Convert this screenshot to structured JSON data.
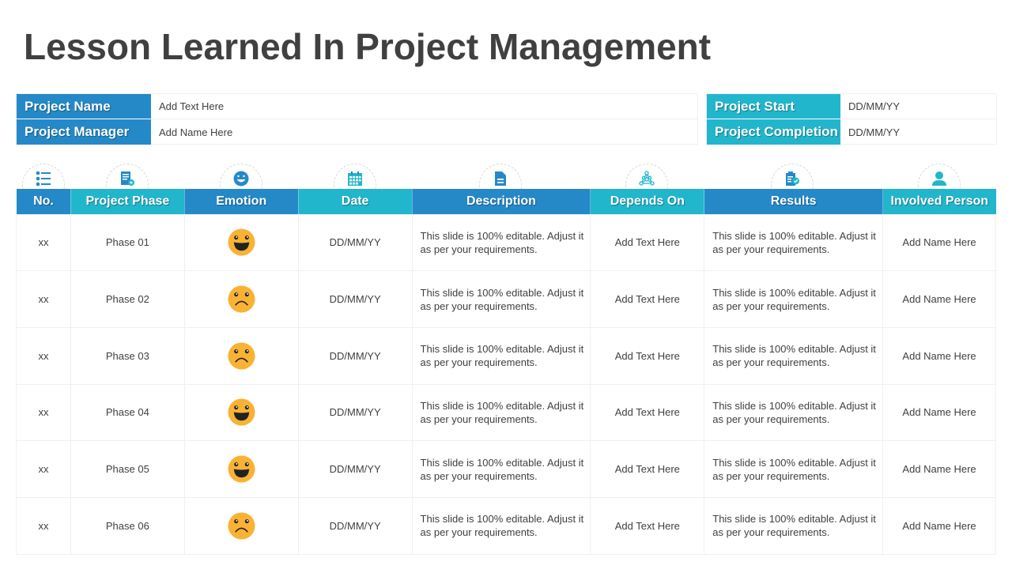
{
  "title": "Lesson Learned In Project Management",
  "info_left": [
    {
      "label": "Project Name",
      "value": "Add Text Here"
    },
    {
      "label": "Project Manager",
      "value": "Add Name Here"
    }
  ],
  "info_right": [
    {
      "label": "Project Start",
      "value": "DD/MM/YY"
    },
    {
      "label": "Project Completion",
      "value": "DD/MM/YY"
    }
  ],
  "colors": {
    "blue": "#2589c8",
    "teal": "#22b6cc",
    "emoji": "#f9b233",
    "text": "#404040"
  },
  "table": {
    "columns": [
      {
        "label": "No.",
        "icon": "list-icon"
      },
      {
        "label": "Project Phase",
        "icon": "document-gear-icon"
      },
      {
        "label": "Emotion",
        "icon": "smiley-icon"
      },
      {
        "label": "Date",
        "icon": "calendar-icon"
      },
      {
        "label": "Description",
        "icon": "file-text-icon"
      },
      {
        "label": "Depends On",
        "icon": "network-icon"
      },
      {
        "label": "Results",
        "icon": "clipboard-check-icon"
      },
      {
        "label": "Involved Person",
        "icon": "user-icon"
      }
    ],
    "rows": [
      {
        "no": "xx",
        "phase": "Phase 01",
        "emotion": "happy",
        "date": "DD/MM/YY",
        "description": "This slide is 100% editable. Adjust it as per your requirements.",
        "depends": "Add Text Here",
        "results": "This slide is 100% editable. Adjust it as per your requirements.",
        "person": "Add Name Here"
      },
      {
        "no": "xx",
        "phase": "Phase 02",
        "emotion": "sad",
        "date": "DD/MM/YY",
        "description": "This slide is 100% editable. Adjust it as per your requirements.",
        "depends": "Add Text Here",
        "results": "This slide is 100% editable. Adjust it as per your requirements.",
        "person": "Add Name Here"
      },
      {
        "no": "xx",
        "phase": "Phase 03",
        "emotion": "sad",
        "date": "DD/MM/YY",
        "description": "This slide is 100% editable. Adjust it as per your requirements.",
        "depends": "Add Text Here",
        "results": "This slide is 100% editable. Adjust it as per your requirements.",
        "person": "Add Name Here"
      },
      {
        "no": "xx",
        "phase": "Phase 04",
        "emotion": "happy",
        "date": "DD/MM/YY",
        "description": "This slide is 100% editable. Adjust it as per your requirements.",
        "depends": "Add Text Here",
        "results": "This slide is 100% editable. Adjust it as per your requirements.",
        "person": "Add Name Here"
      },
      {
        "no": "xx",
        "phase": "Phase 05",
        "emotion": "happy",
        "date": "DD/MM/YY",
        "description": "This slide is 100% editable. Adjust it as per your requirements.",
        "depends": "Add Text Here",
        "results": "This slide is 100% editable. Adjust it as per your requirements.",
        "person": "Add Name Here"
      },
      {
        "no": "xx",
        "phase": "Phase 06",
        "emotion": "sad",
        "date": "DD/MM/YY",
        "description": "This slide is 100% editable. Adjust it as per your requirements.",
        "depends": "Add Text Here",
        "results": "This slide is 100% editable. Adjust it as per your requirements.",
        "person": "Add Name Here"
      }
    ]
  }
}
